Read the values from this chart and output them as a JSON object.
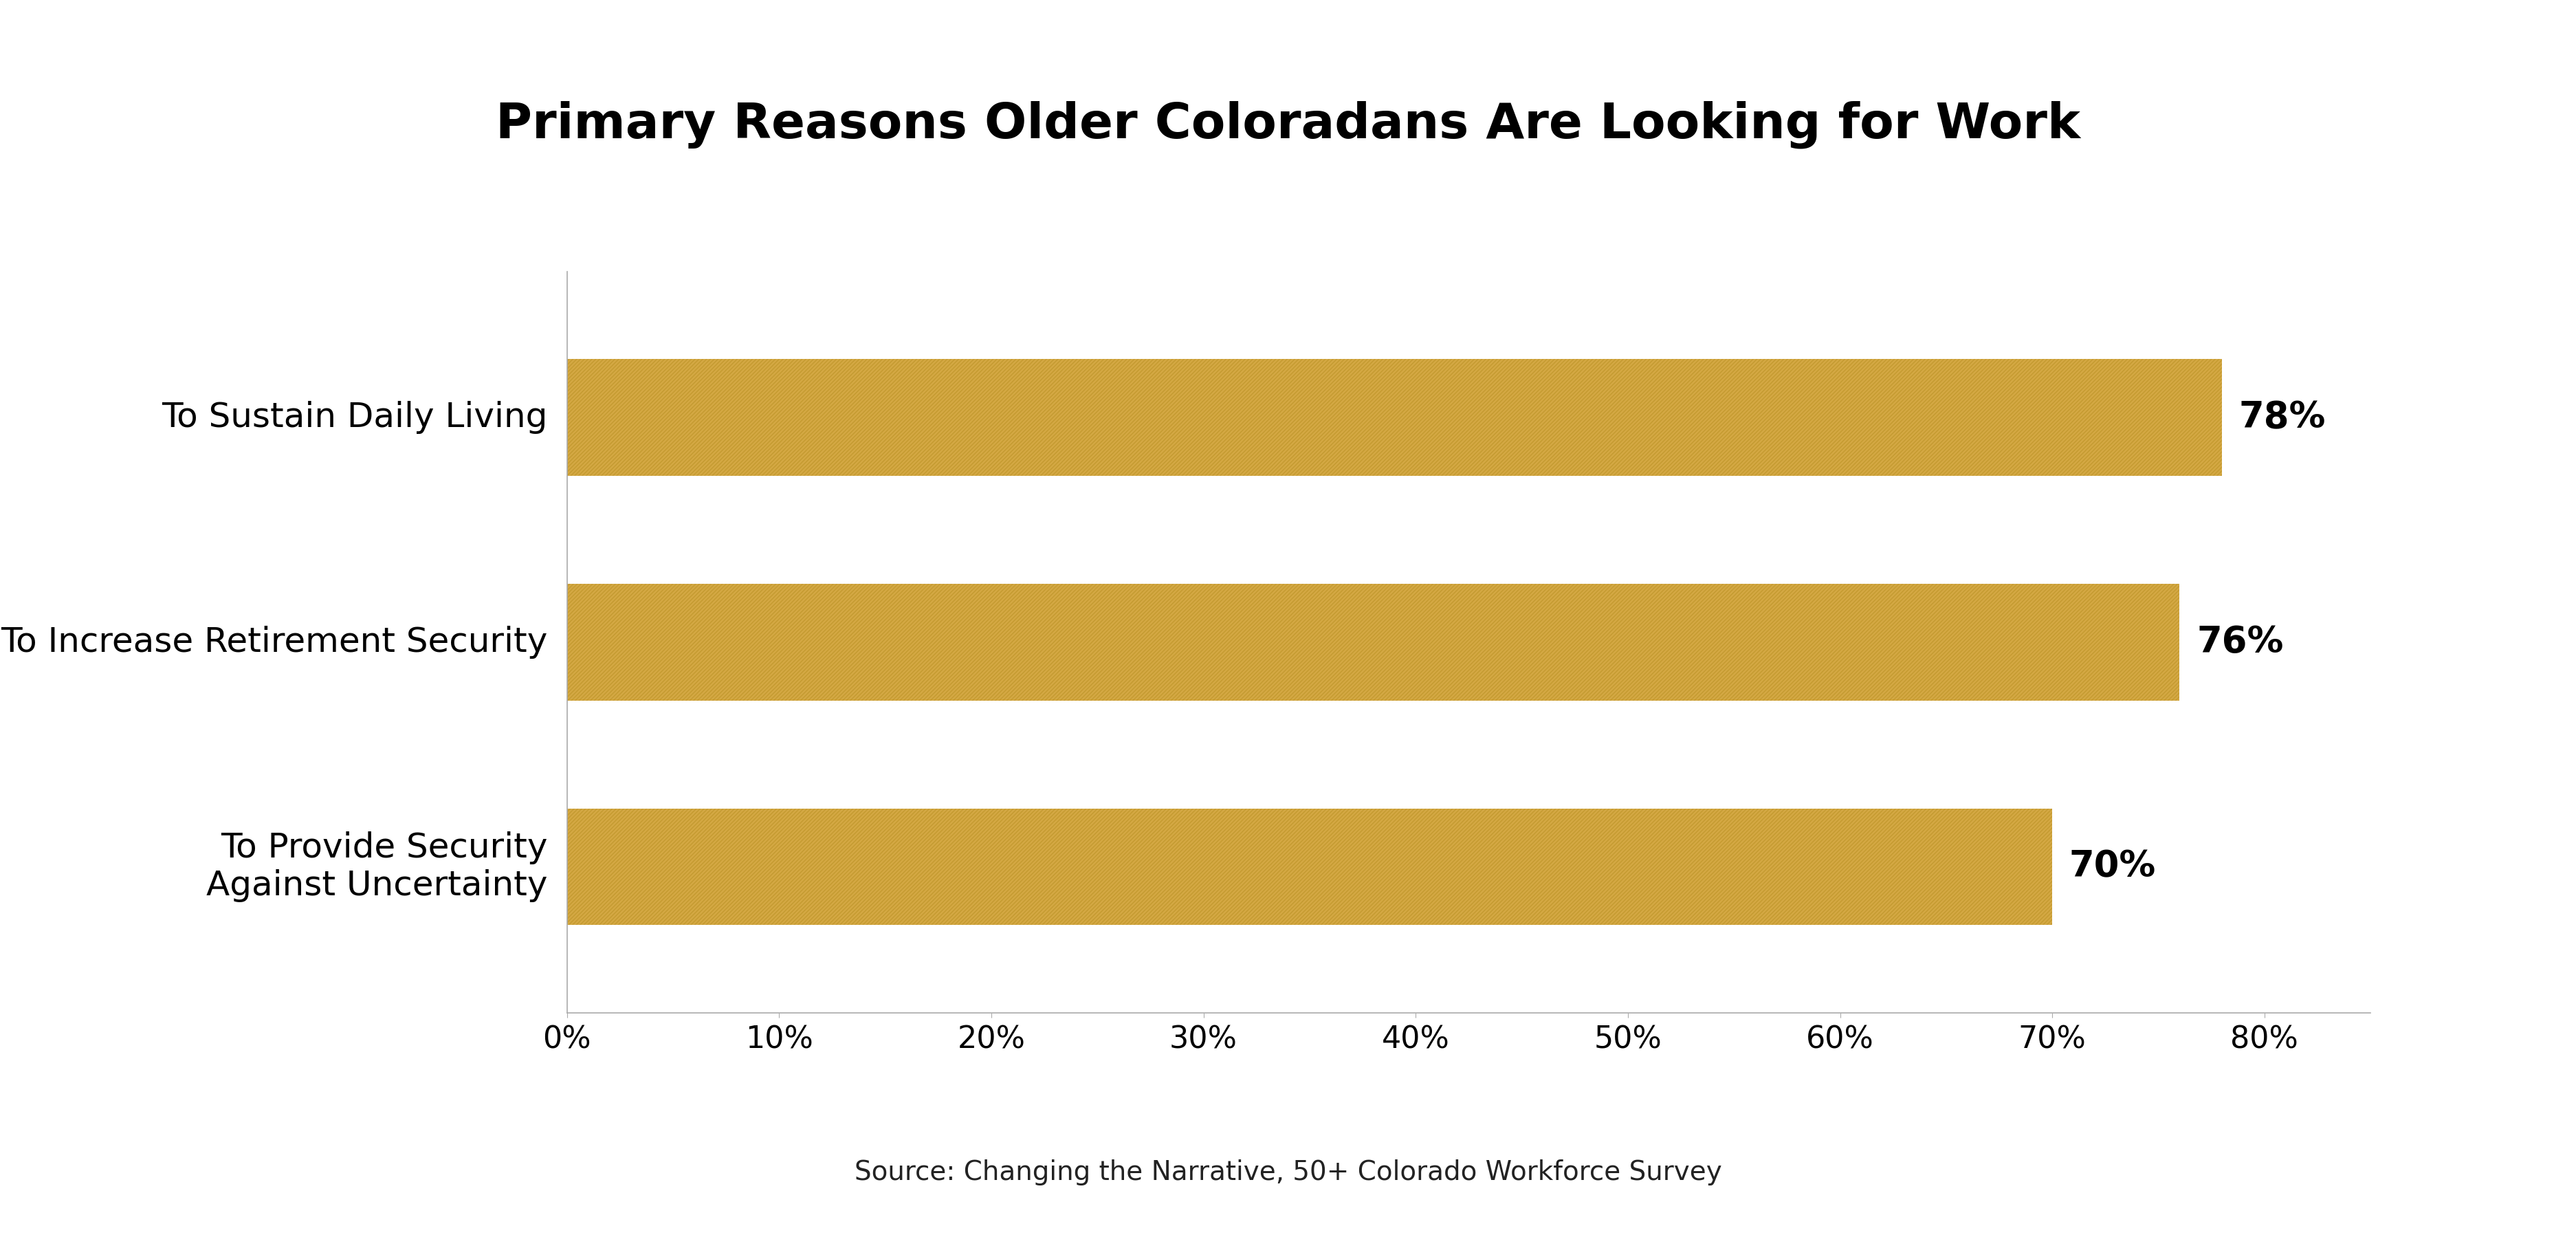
{
  "title": "Primary Reasons Older Coloradans Are Looking for Work",
  "categories": [
    "To Provide Security\nAgainst Uncertainty",
    "To Increase Retirement Security",
    "To Sustain Daily Living"
  ],
  "values": [
    70,
    76,
    78
  ],
  "labels": [
    "70%",
    "76%",
    "78%"
  ],
  "bar_color_face": "#D4A843",
  "bar_color_hatch": "#C49A30",
  "xlim": [
    0,
    85
  ],
  "xticks": [
    0,
    10,
    20,
    30,
    40,
    50,
    60,
    70,
    80
  ],
  "xtick_labels": [
    "0%",
    "10%",
    "20%",
    "30%",
    "40%",
    "50%",
    "60%",
    "70%",
    "80%"
  ],
  "title_fontsize": 52,
  "label_fontsize": 36,
  "tick_fontsize": 32,
  "pct_fontsize": 38,
  "source_text": "Source: Changing the Narrative, 50+ Colorado Workforce Survey",
  "source_fontsize": 28,
  "background_color": "#ffffff",
  "bar_height": 0.52
}
